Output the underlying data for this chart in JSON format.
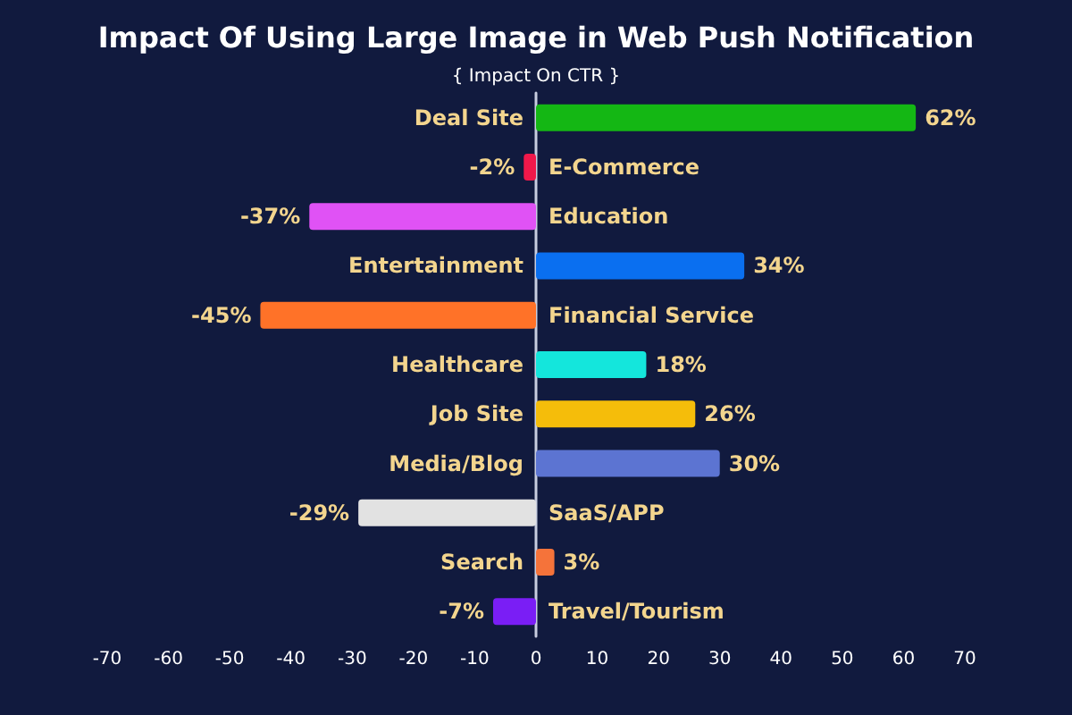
{
  "chart_data": {
    "type": "bar",
    "orientation": "horizontal",
    "title": "Impact Of Using Large Image in Web Push Notification",
    "subtitle": "{ Impact On CTR }",
    "categories": [
      "Deal Site",
      "E-Commerce",
      "Education",
      "Entertainment",
      "Financial Service",
      "Healthcare",
      "Job Site",
      "Media/Blog",
      "SaaS/APP",
      "Search",
      "Travel/Tourism"
    ],
    "values": [
      62,
      -2,
      -37,
      34,
      -45,
      18,
      26,
      30,
      -29,
      3,
      -7
    ],
    "colors": [
      "#14b714",
      "#f0184a",
      "#e052f5",
      "#0a6ff0",
      "#ff7228",
      "#14e6dc",
      "#f5bd0a",
      "#5c74d2",
      "#e2e2e2",
      "#f5733a",
      "#7a1ef5"
    ],
    "value_labels": [
      "62%",
      "-2%",
      "-37%",
      "34%",
      "-45%",
      "18%",
      "26%",
      "30%",
      "-29%",
      "3%",
      "-7%"
    ],
    "xlim": [
      -70,
      70
    ],
    "xticks": [
      -70,
      -60,
      -50,
      -40,
      -30,
      -20,
      -10,
      0,
      10,
      20,
      30,
      40,
      50,
      60,
      70
    ]
  }
}
